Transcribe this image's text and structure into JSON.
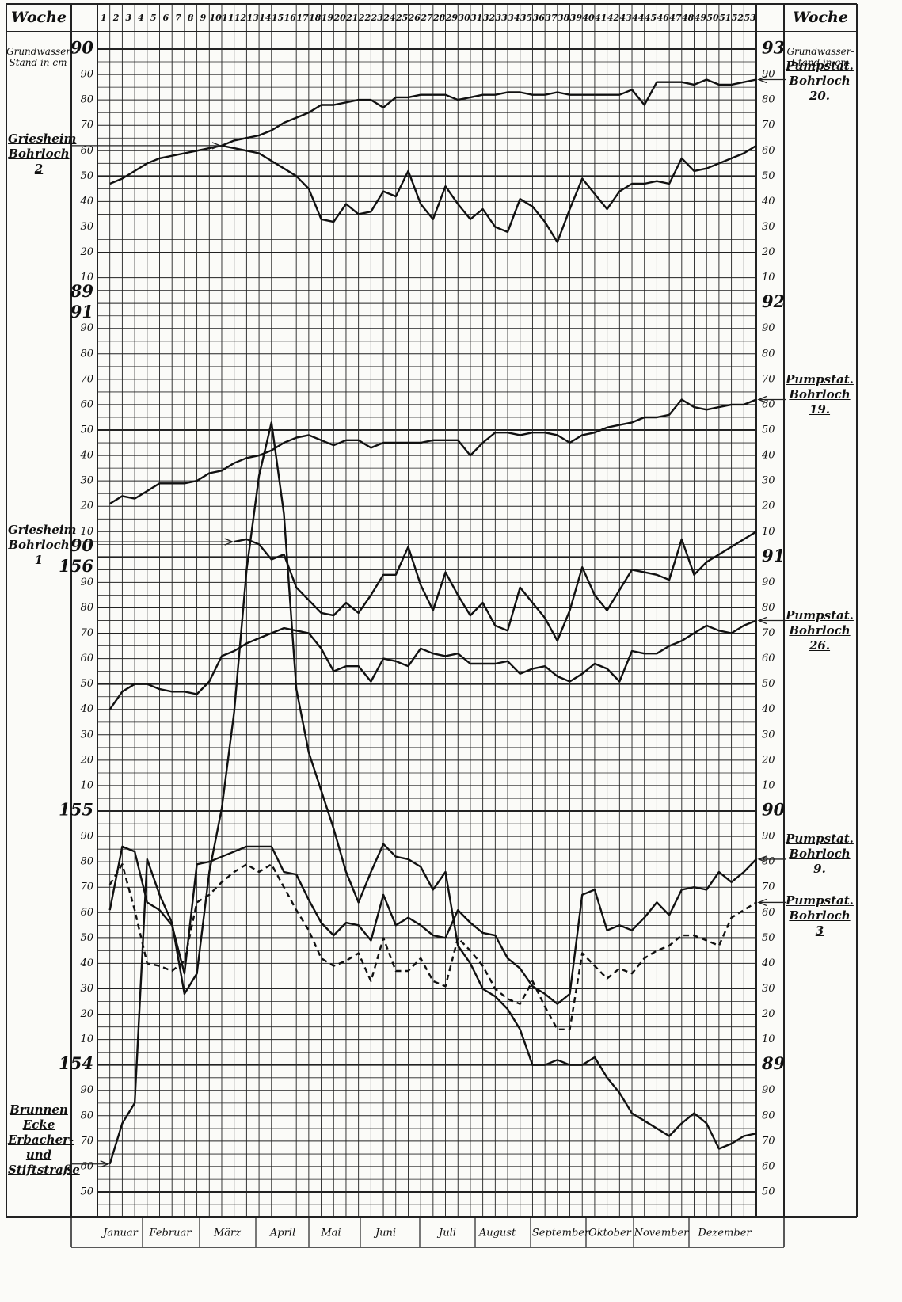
{
  "chart_data": {
    "type": "line",
    "header_label": "Woche",
    "y_label": "Grundwasser-Stand in cm",
    "x": [
      1,
      2,
      3,
      4,
      5,
      6,
      7,
      8,
      9,
      10,
      11,
      12,
      13,
      14,
      15,
      16,
      17,
      18,
      19,
      20,
      21,
      22,
      23,
      24,
      25,
      26,
      27,
      28,
      29,
      30,
      31,
      32,
      33,
      34,
      35,
      36,
      37,
      38,
      39,
      40,
      41,
      42,
      43,
      44,
      45,
      46,
      47,
      48,
      49,
      50,
      51,
      52,
      53
    ],
    "xlim": [
      0,
      53
    ],
    "months": [
      "Januar",
      "Februar",
      "März",
      "April",
      "Mai",
      "Juni",
      "Juli",
      "August",
      "September",
      "Oktober",
      "November",
      "Dezember"
    ],
    "ylim": [
      88.5,
      93
    ],
    "yticks": [
      93,
      {
        "value": 92.9,
        "label": "90"
      },
      {
        "value": 92.8,
        "label": "80"
      },
      {
        "value": 92.7,
        "label": "70"
      },
      {
        "value": 92.6,
        "label": "60"
      },
      {
        "value": 92.5,
        "label": "50"
      },
      {
        "value": 92.4,
        "label": "40"
      },
      {
        "value": 92.3,
        "label": "30"
      },
      {
        "value": 92.2,
        "label": "20"
      },
      {
        "value": 92.1,
        "label": "10"
      },
      92,
      {
        "value": 91.9,
        "label": "90"
      },
      {
        "value": 91.8,
        "label": "80"
      },
      {
        "value": 91.7,
        "label": "70"
      },
      {
        "value": 91.6,
        "label": "60"
      },
      {
        "value": 91.5,
        "label": "50"
      },
      {
        "value": 91.4,
        "label": "40"
      },
      {
        "value": 91.3,
        "label": "30"
      },
      {
        "value": 91.2,
        "label": "20"
      },
      {
        "value": 91.1,
        "label": "10"
      },
      91,
      {
        "value": 90.9,
        "label": "90"
      },
      {
        "value": 90.8,
        "label": "80"
      },
      {
        "value": 90.7,
        "label": "70"
      },
      {
        "value": 90.6,
        "label": "60"
      },
      {
        "value": 90.5,
        "label": "50"
      },
      {
        "value": 90.4,
        "label": "40"
      },
      {
        "value": 90.3,
        "label": "30"
      },
      {
        "value": 90.2,
        "label": "20"
      },
      {
        "value": 90.1,
        "label": "10"
      },
      90,
      {
        "value": 89.9,
        "label": "90"
      },
      {
        "value": 89.8,
        "label": "80"
      },
      {
        "value": 89.7,
        "label": "70"
      },
      {
        "value": 89.6,
        "label": "60"
      },
      {
        "value": 89.5,
        "label": "50"
      },
      {
        "value": 89.4,
        "label": "40"
      },
      {
        "value": 89.3,
        "label": "30"
      },
      {
        "value": 89.2,
        "label": "20"
      },
      {
        "value": 89.1,
        "label": "10"
      },
      89,
      {
        "value": 88.9,
        "label": "90"
      },
      {
        "value": 88.8,
        "label": "80"
      },
      {
        "value": 88.7,
        "label": "70"
      },
      {
        "value": 88.6,
        "label": "60"
      },
      {
        "value": 88.5,
        "label": "50"
      }
    ],
    "left_axis_labels": [
      [
        90
      ],
      [
        90
      ],
      [
        80
      ],
      [
        70
      ],
      [
        60
      ],
      [
        50
      ],
      [
        40
      ],
      [
        30
      ],
      [
        20
      ],
      [
        10
      ],
      [
        89,
        91
      ],
      [
        90
      ],
      [
        80
      ],
      [
        70
      ],
      [
        60
      ],
      [
        50
      ],
      [
        40
      ],
      [
        30
      ],
      [
        20
      ],
      [
        10
      ],
      [
        90,
        156
      ],
      [
        90
      ],
      [
        80
      ],
      [
        70
      ],
      [
        60
      ],
      [
        50
      ],
      [
        40
      ],
      [
        30
      ],
      [
        20
      ],
      [
        10
      ],
      [
        155
      ],
      [
        90
      ],
      [
        80
      ],
      [
        70
      ],
      [
        60
      ],
      [
        50
      ],
      [
        40
      ],
      [
        30
      ],
      [
        20
      ],
      [
        10
      ],
      [
        154
      ],
      [
        90
      ],
      [
        80
      ],
      [
        70
      ],
      [
        60
      ],
      [
        50
      ]
    ],
    "grid": true,
    "series": [
      {
        "name": "Pumpstat. Bohrloch 20.",
        "color": "#111111",
        "style": "solid",
        "values": [
          92.47,
          92.49,
          92.52,
          92.55,
          92.57,
          92.58,
          92.59,
          92.6,
          92.61,
          92.62,
          92.64,
          92.65,
          92.66,
          92.68,
          92.71,
          92.73,
          92.75,
          92.78,
          92.78,
          92.79,
          92.8,
          92.8,
          92.77,
          92.81,
          92.81,
          92.82,
          92.82,
          92.82,
          92.8,
          92.81,
          92.82,
          92.82,
          92.83,
          92.83,
          92.82,
          92.82,
          92.83,
          92.82,
          92.82,
          92.82,
          92.82,
          92.82,
          92.84,
          92.78,
          92.87,
          92.87,
          92.87,
          92.86,
          92.88,
          92.86,
          92.86,
          92.87,
          92.88
        ]
      },
      {
        "name": "Griesheim Bohrloch 2",
        "color": "#111111",
        "style": "solid",
        "values": [
          null,
          null,
          null,
          null,
          null,
          null,
          null,
          null,
          null,
          92.62,
          92.61,
          92.6,
          92.59,
          92.56,
          92.53,
          92.5,
          92.45,
          92.33,
          92.32,
          92.39,
          92.35,
          92.36,
          92.44,
          92.42,
          92.52,
          92.39,
          92.33,
          92.46,
          92.39,
          92.33,
          92.37,
          92.3,
          92.28,
          92.41,
          92.38,
          92.32,
          92.24,
          92.37,
          92.49,
          92.43,
          92.37,
          92.44,
          92.47,
          92.47,
          92.48,
          92.47,
          92.57,
          92.52,
          92.53,
          92.55,
          92.57,
          92.59,
          92.62
        ]
      },
      {
        "name": "Pumpstat. Bohrloch 19.",
        "color": "#111111",
        "style": "solid",
        "values": [
          91.21,
          91.24,
          91.23,
          91.26,
          91.29,
          91.29,
          91.29,
          91.3,
          91.33,
          91.34,
          91.37,
          91.39,
          91.4,
          91.42,
          91.45,
          91.47,
          91.48,
          91.46,
          91.44,
          91.46,
          91.46,
          91.43,
          91.45,
          91.45,
          91.45,
          91.45,
          91.46,
          91.46,
          91.46,
          91.4,
          91.45,
          91.49,
          91.49,
          91.48,
          91.49,
          91.49,
          91.48,
          91.45,
          91.48,
          91.49,
          91.51,
          91.52,
          91.53,
          91.55,
          91.55,
          91.56,
          91.62,
          91.59,
          91.58,
          91.59,
          91.6,
          91.6,
          91.62
        ]
      },
      {
        "name": "Griesheim Bohrloch 1",
        "color": "#111111",
        "style": "solid",
        "values": [
          null,
          null,
          null,
          null,
          null,
          null,
          null,
          null,
          null,
          null,
          91.06,
          91.07,
          91.05,
          90.99,
          91.01,
          90.88,
          90.83,
          90.78,
          90.77,
          90.82,
          90.78,
          90.85,
          90.93,
          90.93,
          91.04,
          90.89,
          90.79,
          90.94,
          90.85,
          90.77,
          90.82,
          90.73,
          90.71,
          90.88,
          90.82,
          90.76,
          90.67,
          90.79,
          90.96,
          90.85,
          90.79,
          90.87,
          90.95,
          90.94,
          90.93,
          90.91,
          91.07,
          90.93,
          90.98,
          91.01,
          91.04,
          91.07,
          91.1
        ]
      },
      {
        "name": "Pumpstat. Bohrloch 26.",
        "color": "#111111",
        "style": "solid",
        "values": [
          90.4,
          90.47,
          90.5,
          90.5,
          90.48,
          90.47,
          90.47,
          90.46,
          90.51,
          90.61,
          90.63,
          90.66,
          90.68,
          90.7,
          90.72,
          90.71,
          90.7,
          90.64,
          90.55,
          90.57,
          90.57,
          90.51,
          90.6,
          90.59,
          90.57,
          90.64,
          90.62,
          90.61,
          90.62,
          90.58,
          90.58,
          90.58,
          90.59,
          90.54,
          90.56,
          90.57,
          90.53,
          90.51,
          90.54,
          90.58,
          90.56,
          90.51,
          90.63,
          90.62,
          90.62,
          90.65,
          90.67,
          90.7,
          90.73,
          90.71,
          90.7,
          90.73,
          90.75
        ]
      },
      {
        "name": "Pumpstat. Bohrloch 9.",
        "color": "#111111",
        "style": "solid",
        "values": [
          89.61,
          89.86,
          89.84,
          89.64,
          89.61,
          89.55,
          89.36,
          89.79,
          89.8,
          89.82,
          89.84,
          89.86,
          89.86,
          89.86,
          89.76,
          89.75,
          89.65,
          89.56,
          89.51,
          89.56,
          89.55,
          89.49,
          89.67,
          89.55,
          89.58,
          89.55,
          89.51,
          89.5,
          89.61,
          89.56,
          89.52,
          89.51,
          89.42,
          89.38,
          89.31,
          89.28,
          89.24,
          89.28,
          89.67,
          89.69,
          89.53,
          89.55,
          89.53,
          89.58,
          89.64,
          89.59,
          89.69,
          89.7,
          89.69,
          89.76,
          89.72,
          89.76,
          89.81
        ]
      },
      {
        "name": "Pumpstat. Bohrloch 3",
        "color": "#111111",
        "style": "dashed",
        "values": [
          89.71,
          89.79,
          89.61,
          89.4,
          89.39,
          89.37,
          89.41,
          89.64,
          89.67,
          89.72,
          89.76,
          89.79,
          89.76,
          89.79,
          89.7,
          89.61,
          89.53,
          89.42,
          89.39,
          89.41,
          89.44,
          89.33,
          89.5,
          89.37,
          89.37,
          89.42,
          89.33,
          89.31,
          89.5,
          89.45,
          89.39,
          89.3,
          89.26,
          89.24,
          89.33,
          89.23,
          89.14,
          89.14,
          89.44,
          89.39,
          89.34,
          89.38,
          89.36,
          89.42,
          89.45,
          89.47,
          89.51,
          89.51,
          89.49,
          89.47,
          89.58,
          89.61,
          89.64
        ]
      },
      {
        "name": "Brunnen Ecke Erbacher- und Stiftstraße",
        "color": "#111111",
        "style": "solid",
        "values": [
          88.61,
          88.77,
          88.85,
          89.81,
          89.67,
          89.56,
          89.28,
          89.36,
          89.76,
          90.01,
          90.39,
          90.95,
          91.32,
          91.53,
          91.17,
          90.48,
          90.23,
          90.08,
          89.93,
          89.76,
          89.64,
          89.76,
          89.87,
          89.82,
          89.81,
          89.78,
          89.69,
          89.76,
          89.47,
          89.4,
          89.3,
          89.27,
          89.22,
          89.14,
          89.0,
          89.0,
          89.02,
          89.0,
          89.0,
          89.03,
          88.95,
          88.89,
          88.81,
          88.78,
          88.75,
          88.72,
          88.77,
          88.81,
          88.77,
          88.67,
          88.69,
          88.72,
          88.73
        ]
      }
    ]
  }
}
